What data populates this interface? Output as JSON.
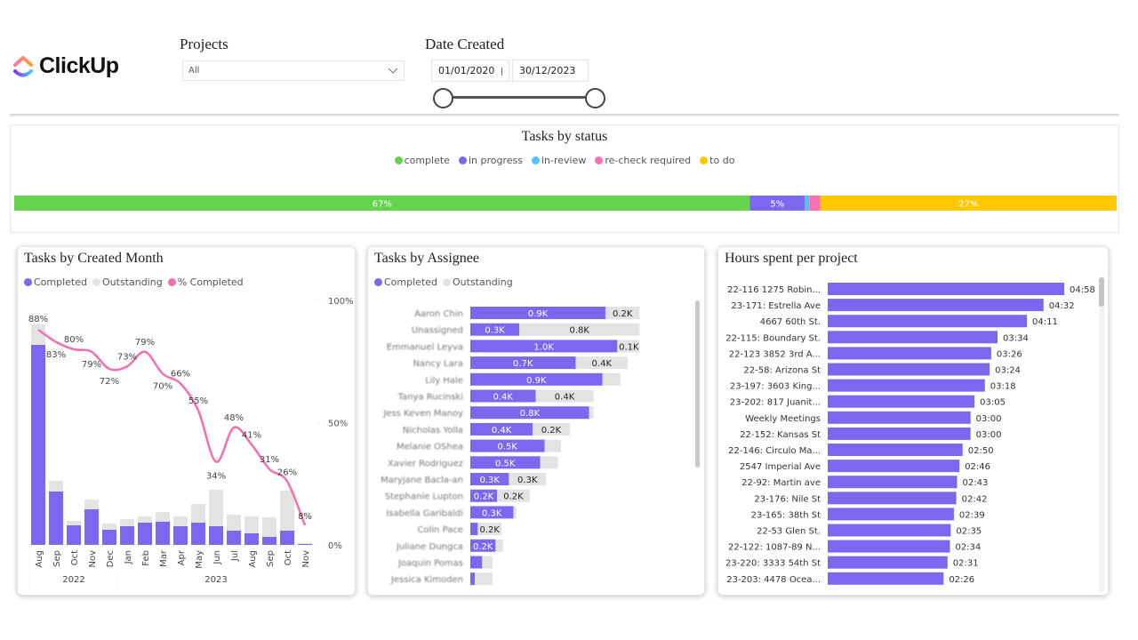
{
  "brand": {
    "name": "ClickUp"
  },
  "filters": {
    "projects": {
      "label": "Projects",
      "value": "All"
    },
    "date_created": {
      "label": "Date Created",
      "start": "01/01/2020",
      "end": "30/12/2023",
      "range_fraction": [
        0,
        1
      ]
    }
  },
  "colors": {
    "completed": "#7b68ee",
    "outstanding": "#e3e3e3",
    "pct_line": "#f56fb0",
    "complete": "#66d34e",
    "in_progress": "#7b68ee",
    "in_review": "#4fc3f7",
    "recheck": "#f772b5",
    "todo": "#ffc800"
  },
  "chart_data": [
    {
      "type": "bar",
      "title": "Tasks by status",
      "orientation": "stacked-100%",
      "legend": [
        "complete",
        "in progress",
        "in-review",
        "re-check required",
        "to do"
      ],
      "values": [
        67,
        5,
        0.4,
        1,
        27
      ],
      "data_labels": [
        "67%",
        "5%",
        "",
        "",
        "27%"
      ]
    },
    {
      "type": "bar+line",
      "title": "Tasks by Created Month",
      "legend": [
        "Completed",
        "Outstanding",
        "% Completed"
      ],
      "categories": [
        "Aug",
        "Sep",
        "Oct",
        "Nov",
        "Dec",
        "Jan",
        "Feb",
        "Mar",
        "Apr",
        "May",
        "Jun",
        "Jul",
        "Aug",
        "Sep",
        "Oct",
        "Nov"
      ],
      "year_groups": [
        {
          "label": "2022",
          "count": 5
        },
        {
          "label": "2023",
          "count": 11
        }
      ],
      "series": [
        {
          "name": "Completed",
          "values": [
            225,
            60,
            22,
            40,
            17,
            21,
            25,
            26,
            21,
            25,
            21,
            16,
            13,
            9,
            16,
            1
          ]
        },
        {
          "name": "Outstanding",
          "values": [
            23,
            12,
            5,
            11,
            7,
            8,
            7,
            11,
            11,
            21,
            41,
            18,
            19,
            22,
            45,
            1
          ]
        },
        {
          "name": "% Completed",
          "values": [
            88,
            83,
            80,
            79,
            72,
            73,
            79,
            70,
            66,
            55,
            34,
            48,
            41,
            31,
            26,
            8
          ]
        }
      ],
      "pct_labels": [
        "88%",
        "83%",
        "80%",
        "79%",
        "72%",
        "73%",
        "79%",
        "70%",
        "66%",
        "55%",
        "34%",
        "48%",
        "41%",
        "31%",
        "26%",
        "8%"
      ],
      "y2_ticks": [
        "100%",
        "50%",
        "0%"
      ],
      "y2lim": [
        0,
        100
      ]
    },
    {
      "type": "bar",
      "title": "Tasks by Assignee",
      "orientation": "horizontal-stacked",
      "legend": [
        "Completed",
        "Outstanding"
      ],
      "categories": [
        "Aaron Chin",
        "Unassigned",
        "Emmanuel Leyva",
        "Nancy Lara",
        "Lily Hale",
        "Tanya Rucinski",
        "Jess Keven Manoy",
        "Nicholas Yolla",
        "Melanie OShea",
        "Xavier Rodriguez",
        "Maryjane Bacla-an",
        "Stephanie Lupton",
        "Isabella Garibaldi",
        "Colin Pace",
        "Juliane Dungca",
        "Joaquin Pomas",
        "Jessica Kimoden"
      ],
      "series": [
        {
          "name": "Completed",
          "unit": "K",
          "values": [
            0.91,
            0.33,
            0.99,
            0.71,
            0.89,
            0.44,
            0.8,
            0.42,
            0.5,
            0.47,
            0.26,
            0.18,
            0.29,
            0.05,
            0.17,
            0.08,
            0.03
          ],
          "labels": [
            "0.9K",
            "0.3K",
            "1.0K",
            "0.7K",
            "0.9K",
            "0.4K",
            "0.8K",
            "0.4K",
            "0.5K",
            "0.5K",
            "0.3K",
            "0.2K",
            "0.3K",
            "",
            "0.2K",
            "",
            ""
          ]
        },
        {
          "name": "Outstanding",
          "unit": "K",
          "values": [
            0.23,
            0.81,
            0.15,
            0.35,
            0.12,
            0.39,
            0.03,
            0.25,
            0.11,
            0.12,
            0.25,
            0.22,
            0.02,
            0.16,
            0.05,
            0.07,
            0.12
          ],
          "labels": [
            "0.2K",
            "0.8K",
            "0.1K",
            "0.4K",
            "",
            "0.4K",
            "",
            "0.2K",
            "",
            "",
            "0.3K",
            "0.2K",
            "",
            "0.2K",
            "",
            "",
            ""
          ]
        }
      ]
    },
    {
      "type": "bar",
      "title": "Hours spent per project",
      "orientation": "horizontal",
      "categories": [
        "22-116 1275 Robin...",
        "23-171: Estrella Ave",
        "4667 60th St.",
        "22-115: Boundary St.",
        "22-123 3852 3rd A...",
        "22-58: Arizona St",
        "23-197: 3603 King...",
        "23-202: 817 Juanit...",
        "Weekly Meetings",
        "22-152: Kansas St",
        "22-146: Circulo Ma...",
        "2547 Imperial Ave",
        "22-92: Martin ave",
        "23-176: Nile St",
        "23-165: 38th St",
        "22-53 Glen St.",
        "22-122: 1087-89 N...",
        "23-220: 3333 54th St",
        "23-203: 4478 Ocea..."
      ],
      "labels": [
        "04:58",
        "04:32",
        "04:11",
        "03:34",
        "03:26",
        "03:24",
        "03:18",
        "03:05",
        "03:00",
        "03:00",
        "02:50",
        "02:46",
        "02:43",
        "02:42",
        "02:39",
        "02:35",
        "02:34",
        "02:31",
        "02:26"
      ],
      "values_minutes": [
        298,
        272,
        251,
        214,
        206,
        204,
        198,
        185,
        180,
        180,
        170,
        166,
        163,
        162,
        159,
        155,
        154,
        151,
        146
      ]
    }
  ]
}
